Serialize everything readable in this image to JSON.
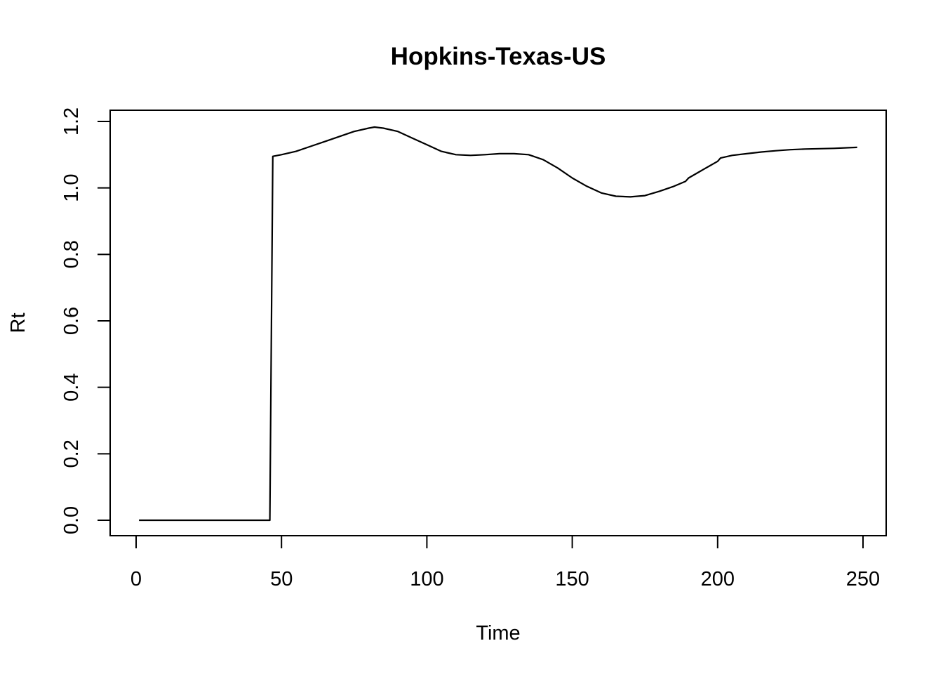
{
  "chart_data": {
    "type": "line",
    "title": "Hopkins-Texas-US",
    "xlabel": "Time",
    "ylabel": "Rt",
    "xlim": [
      1,
      248
    ],
    "ylim": [
      0,
      1.2
    ],
    "x_ticks": [
      0,
      50,
      100,
      150,
      200,
      250
    ],
    "y_ticks": [
      0.0,
      0.2,
      0.4,
      0.6,
      0.8,
      1.0,
      1.2
    ],
    "x_tick_labels": [
      "0",
      "50",
      "100",
      "150",
      "200",
      "250"
    ],
    "y_tick_labels": [
      "0.0",
      "0.2",
      "0.4",
      "0.6",
      "0.8",
      "1.0",
      "1.2"
    ],
    "grid": false,
    "series": [
      {
        "x": [
          1,
          10,
          20,
          30,
          40,
          46,
          47,
          50,
          55,
          60,
          65,
          70,
          75,
          80,
          82,
          85,
          90,
          95,
          100,
          105,
          110,
          115,
          120,
          125,
          130,
          135,
          140,
          145,
          150,
          155,
          160,
          165,
          170,
          175,
          180,
          185,
          189,
          190,
          194,
          195,
          198,
          200,
          201,
          205,
          210,
          215,
          220,
          225,
          230,
          235,
          240,
          245,
          248
        ],
        "y": [
          0,
          0,
          0,
          0,
          0,
          0,
          1.095,
          1.1,
          1.11,
          1.125,
          1.14,
          1.155,
          1.17,
          1.18,
          1.183,
          1.18,
          1.17,
          1.15,
          1.13,
          1.11,
          1.1,
          1.098,
          1.1,
          1.103,
          1.103,
          1.1,
          1.085,
          1.06,
          1.03,
          1.005,
          0.985,
          0.975,
          0.973,
          0.977,
          0.99,
          1.005,
          1.02,
          1.03,
          1.05,
          1.055,
          1.07,
          1.08,
          1.09,
          1.098,
          1.103,
          1.108,
          1.112,
          1.115,
          1.117,
          1.118,
          1.119,
          1.121,
          1.122
        ]
      }
    ]
  }
}
